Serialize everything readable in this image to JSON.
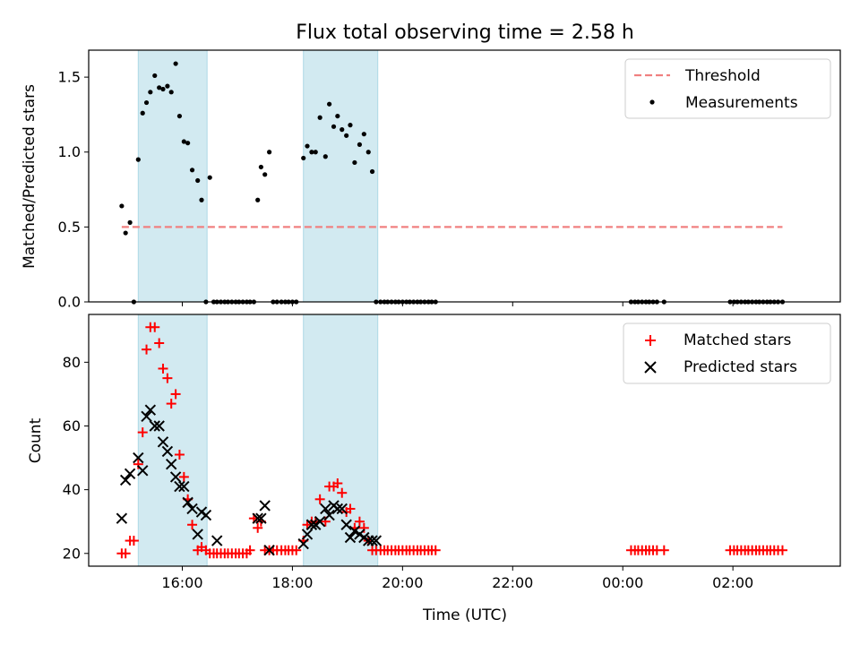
{
  "chart_data": [
    {
      "type": "scatter",
      "title": "Flux total observing time = 2.58 h",
      "xlabel": "",
      "ylabel": "Matched/Predicted stars",
      "x_unit": "hours since 00:00 of observation day (UTC)",
      "xlim": [
        14.3,
        27.95
      ],
      "ylim": [
        0.0,
        1.68
      ],
      "yticks": [
        0.0,
        0.5,
        1.0,
        1.5
      ],
      "ytick_labels": [
        "0.0",
        "0.5",
        "1.0",
        "1.5"
      ],
      "xticks": [
        16,
        18,
        20,
        22,
        24,
        26
      ],
      "legend": "top-right",
      "shaded_intervals": [
        [
          15.2,
          16.45
        ],
        [
          18.2,
          19.55
        ]
      ],
      "shade_color": "#add8e6",
      "series": [
        {
          "name": "Threshold",
          "kind": "dashed-line",
          "color": "#f08080",
          "x": [
            14.9,
            26.9
          ],
          "y": [
            0.5,
            0.5
          ]
        },
        {
          "name": "Measurements",
          "kind": "points",
          "color": "#000000",
          "x": [
            14.9,
            14.97,
            15.05,
            15.12,
            15.2,
            15.28,
            15.35,
            15.42,
            15.5,
            15.58,
            15.65,
            15.73,
            15.8,
            15.88,
            15.95,
            16.03,
            16.1,
            16.18,
            16.28,
            16.35,
            16.43,
            16.5,
            16.57,
            16.63,
            16.7,
            16.77,
            16.83,
            16.9,
            16.97,
            17.03,
            17.1,
            17.17,
            17.23,
            17.3,
            17.37,
            17.43,
            17.5,
            17.58,
            17.65,
            17.72,
            17.8,
            17.87,
            17.93,
            18.0,
            18.07,
            18.2,
            18.27,
            18.35,
            18.42,
            18.5,
            18.6,
            18.67,
            18.75,
            18.82,
            18.9,
            18.98,
            19.05,
            19.13,
            19.22,
            19.3,
            19.38,
            19.45,
            19.52,
            19.6,
            19.67,
            19.73,
            19.8,
            19.87,
            19.93,
            20.0,
            20.07,
            20.13,
            20.2,
            20.27,
            20.33,
            20.4,
            20.47,
            20.53,
            20.6,
            24.15,
            24.22,
            24.28,
            24.35,
            24.42,
            24.48,
            24.55,
            24.62,
            24.75,
            25.95,
            26.02,
            26.08,
            26.15,
            26.22,
            26.28,
            26.35,
            26.42,
            26.48,
            26.55,
            26.62,
            26.68,
            26.75,
            26.82,
            26.9
          ],
          "y": [
            0.64,
            0.46,
            0.53,
            0.0,
            0.95,
            1.26,
            1.33,
            1.4,
            1.51,
            1.43,
            1.42,
            1.44,
            1.4,
            1.59,
            1.24,
            1.07,
            1.06,
            0.88,
            0.81,
            0.68,
            0.0,
            0.83,
            0.0,
            0.0,
            0.0,
            0.0,
            0.0,
            0.0,
            0.0,
            0.0,
            0.0,
            0.0,
            0.0,
            0.0,
            0.68,
            0.9,
            0.85,
            1.0,
            0.0,
            0.0,
            0.0,
            0.0,
            0.0,
            0.0,
            0.0,
            0.96,
            1.04,
            1.0,
            1.0,
            1.23,
            0.97,
            1.32,
            1.17,
            1.24,
            1.15,
            1.11,
            1.18,
            0.93,
            1.05,
            1.12,
            1.0,
            0.87,
            0.0,
            0.0,
            0.0,
            0.0,
            0.0,
            0.0,
            0.0,
            0.0,
            0.0,
            0.0,
            0.0,
            0.0,
            0.0,
            0.0,
            0.0,
            0.0,
            0.0,
            0.0,
            0.0,
            0.0,
            0.0,
            0.0,
            0.0,
            0.0,
            0.0,
            0.0,
            0.0,
            0.0,
            0.0,
            0.0,
            0.0,
            0.0,
            0.0,
            0.0,
            0.0,
            0.0,
            0.0,
            0.0,
            0.0,
            0.0,
            0.0
          ]
        }
      ]
    },
    {
      "type": "scatter",
      "title": "",
      "xlabel": "Time (UTC)",
      "ylabel": "Count",
      "x_unit": "hours since 00:00 of observation day (UTC)",
      "xlim": [
        14.3,
        27.95
      ],
      "ylim": [
        16.0,
        95.0
      ],
      "yticks": [
        20,
        40,
        60,
        80
      ],
      "ytick_labels": [
        "20",
        "40",
        "60",
        "80"
      ],
      "xticks": [
        16,
        18,
        20,
        22,
        24,
        26
      ],
      "xtick_labels": [
        "16:00",
        "18:00",
        "20:00",
        "22:00",
        "00:00",
        "02:00"
      ],
      "legend": "top-right",
      "shaded_intervals": [
        [
          15.2,
          16.45
        ],
        [
          18.2,
          19.55
        ]
      ],
      "shade_color": "#add8e6",
      "series": [
        {
          "name": "Matched stars",
          "marker": "plus",
          "color": "#ff0000",
          "x": [
            14.9,
            14.97,
            15.05,
            15.12,
            15.2,
            15.28,
            15.35,
            15.42,
            15.5,
            15.58,
            15.65,
            15.73,
            15.8,
            15.88,
            15.95,
            16.03,
            16.1,
            16.18,
            16.28,
            16.35,
            16.43,
            16.5,
            16.57,
            16.63,
            16.7,
            16.77,
            16.83,
            16.9,
            16.97,
            17.03,
            17.1,
            17.17,
            17.23,
            17.3,
            17.37,
            17.43,
            17.5,
            17.58,
            17.65,
            17.72,
            17.8,
            17.87,
            17.93,
            18.0,
            18.07,
            18.2,
            18.27,
            18.35,
            18.42,
            18.5,
            18.6,
            18.67,
            18.75,
            18.82,
            18.9,
            18.98,
            19.05,
            19.13,
            19.22,
            19.3,
            19.38,
            19.45,
            19.52,
            19.6,
            19.67,
            19.73,
            19.8,
            19.87,
            19.93,
            20.0,
            20.07,
            20.13,
            20.2,
            20.27,
            20.33,
            20.4,
            20.47,
            20.53,
            20.6,
            24.15,
            24.22,
            24.28,
            24.35,
            24.42,
            24.48,
            24.55,
            24.62,
            24.75,
            25.95,
            26.02,
            26.08,
            26.15,
            26.22,
            26.28,
            26.35,
            26.42,
            26.48,
            26.55,
            26.62,
            26.68,
            26.75,
            26.82,
            26.9
          ],
          "y": [
            20,
            20,
            24,
            24,
            48,
            58,
            84,
            91,
            91,
            86,
            78,
            75,
            67,
            70,
            51,
            44,
            37,
            29,
            21,
            22,
            21,
            20,
            20,
            20,
            20,
            20,
            20,
            20,
            20,
            20,
            20,
            20,
            21,
            31,
            28,
            30,
            21,
            21,
            21,
            21,
            21,
            21,
            21,
            21,
            21,
            24,
            29,
            30,
            30,
            37,
            30,
            41,
            41,
            42,
            39,
            33,
            34,
            28,
            30,
            28,
            24,
            21,
            21,
            21,
            21,
            21,
            21,
            21,
            21,
            21,
            21,
            21,
            21,
            21,
            21,
            21,
            21,
            21,
            21,
            21,
            21,
            21,
            21,
            21,
            21,
            21,
            21,
            21,
            21,
            21,
            21,
            21,
            21,
            21,
            21,
            21,
            21,
            21,
            21,
            21,
            21,
            21,
            21
          ]
        },
        {
          "name": "Predicted stars",
          "marker": "x",
          "color": "#000000",
          "x": [
            14.9,
            14.97,
            15.05,
            15.2,
            15.28,
            15.35,
            15.42,
            15.5,
            15.58,
            15.65,
            15.73,
            15.8,
            15.88,
            15.95,
            16.03,
            16.1,
            16.18,
            16.28,
            16.35,
            16.43,
            16.63,
            17.37,
            17.43,
            17.5,
            17.58,
            18.2,
            18.27,
            18.35,
            18.42,
            18.5,
            18.6,
            18.67,
            18.75,
            18.82,
            18.9,
            18.98,
            19.05,
            19.13,
            19.22,
            19.3,
            19.38,
            19.45,
            19.52
          ],
          "y": [
            31,
            43,
            45,
            50,
            46,
            63,
            65,
            60,
            60,
            55,
            52,
            48,
            44,
            41,
            41,
            36,
            34,
            26,
            33,
            32,
            24,
            31,
            31,
            35,
            21,
            23,
            26,
            29,
            29,
            30,
            34,
            32,
            35,
            34,
            34,
            29,
            25,
            27,
            26,
            25,
            24,
            24,
            24
          ]
        }
      ]
    }
  ]
}
